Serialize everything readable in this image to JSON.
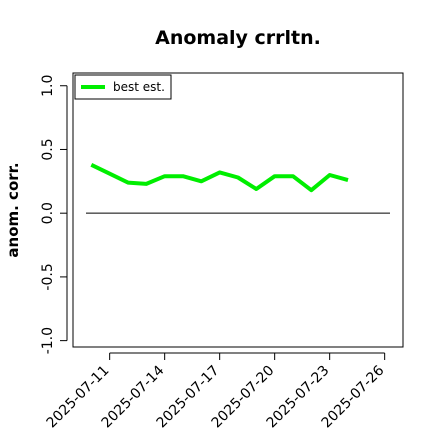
{
  "chart_data": {
    "type": "line",
    "title": "Anomaly crrltn.",
    "xlabel": "",
    "ylabel": "anom. corr.",
    "x": [
      "2025-07-10",
      "2025-07-11",
      "2025-07-12",
      "2025-07-13",
      "2025-07-14",
      "2025-07-15",
      "2025-07-16",
      "2025-07-17",
      "2025-07-18",
      "2025-07-19",
      "2025-07-20",
      "2025-07-21",
      "2025-07-22",
      "2025-07-23",
      "2025-07-24"
    ],
    "series": [
      {
        "name": "best est.",
        "color": "#00ee00",
        "values": [
          0.38,
          0.31,
          0.24,
          0.23,
          0.29,
          0.29,
          0.25,
          0.32,
          0.28,
          0.19,
          0.29,
          0.29,
          0.18,
          0.3,
          0.26
        ]
      }
    ],
    "reference_line": {
      "y": 0.0,
      "color": "#000000"
    },
    "xticks": [
      "2025-07-11",
      "2025-07-14",
      "2025-07-17",
      "2025-07-20",
      "2025-07-23",
      "2025-07-26"
    ],
    "yticks": [
      -1.0,
      -0.5,
      0.0,
      0.5,
      1.0
    ],
    "ytick_labels": [
      "-1.0",
      "-0.5",
      "0.0",
      "0.5",
      "1.0"
    ],
    "xlim": [
      "2025-07-09",
      "2025-07-27"
    ],
    "ylim": [
      -1.05,
      1.1
    ],
    "grid": false,
    "legend_position": "top-left"
  }
}
